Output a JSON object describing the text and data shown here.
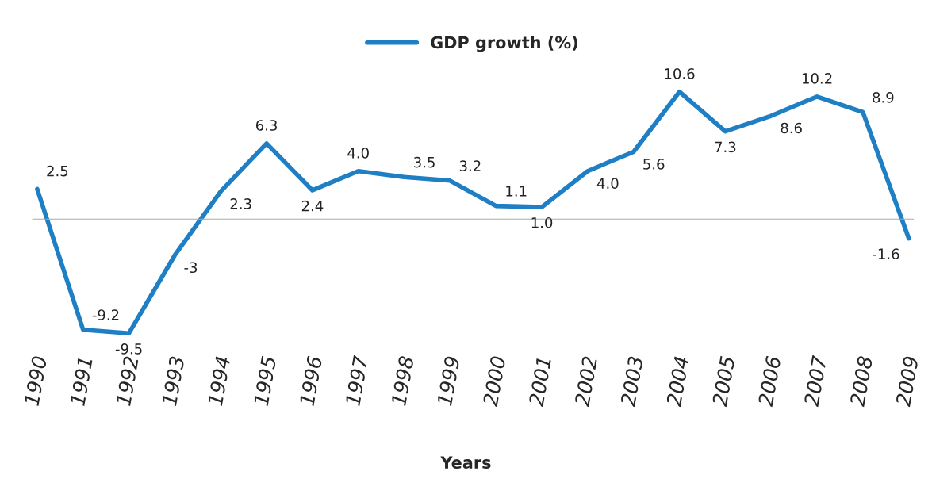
{
  "chart_data": {
    "type": "line",
    "xlabel": "Years",
    "categories": [
      "1990",
      "1991",
      "1992",
      "1993",
      "1994",
      "1995",
      "1996",
      "1997",
      "1998",
      "1999",
      "2000",
      "2001",
      "2002",
      "2003",
      "2004",
      "2005",
      "2006",
      "2007",
      "2008",
      "2009"
    ],
    "series": [
      {
        "name": "GDP growth (%)",
        "color": "#1f7fc4",
        "values": [
          2.5,
          -9.2,
          -9.5,
          -3,
          2.3,
          6.3,
          2.4,
          4.0,
          3.5,
          3.2,
          1.1,
          1.0,
          4.0,
          5.6,
          10.6,
          7.3,
          8.6,
          10.2,
          8.9,
          -1.6
        ],
        "value_labels": [
          "2.5",
          "-9.2",
          "-9.5",
          "-3",
          "2.3",
          "6.3",
          "2.4",
          "4.0",
          "3.5",
          "3.2",
          "1.1",
          "1.0",
          "4.0",
          "5.6",
          "10.6",
          "7.3",
          "8.6",
          "10.2",
          "8.9",
          "-1.6"
        ]
      }
    ],
    "legend": "top",
    "tick_labels": "x",
    "marker": "none",
    "line_style": "solid",
    "grid": false
  }
}
